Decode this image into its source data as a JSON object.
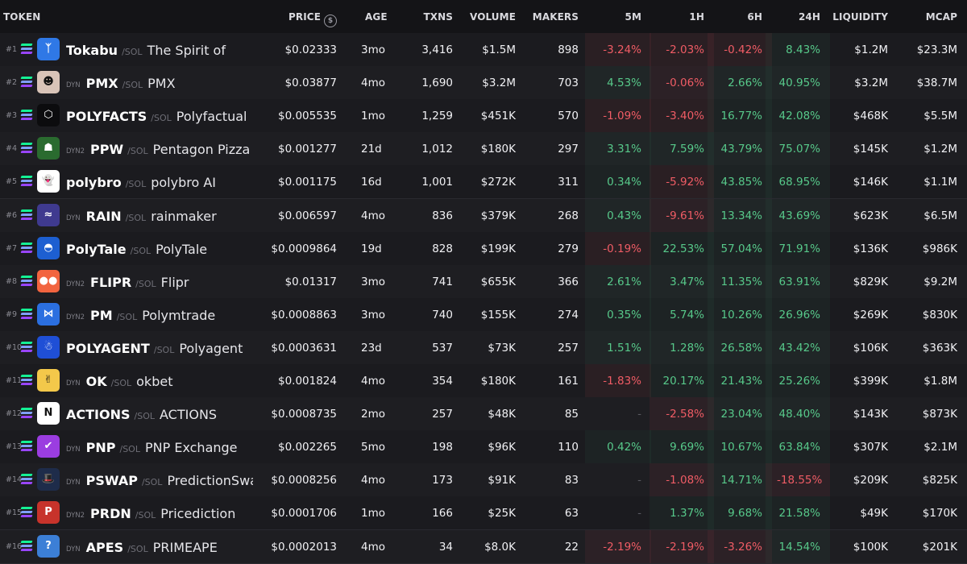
{
  "header": {
    "token": "TOKEN",
    "price": "PRICE",
    "price_icon": "$",
    "age": "AGE",
    "txns": "TXNS",
    "volume": "VOLUME",
    "makers": "MAKERS",
    "m5": "5M",
    "h1": "1H",
    "h6": "6H",
    "h24": "24H",
    "liquidity": "LIQUIDITY",
    "mcap": "MCAP"
  },
  "colors": {
    "positive": "#57c98a",
    "negative": "#f05c65",
    "background": "#1b1b1f",
    "header_bg": "#141417"
  },
  "rows": [
    {
      "rank": "#1",
      "dex": "",
      "symbol": "Tokabu",
      "chain": "SOL",
      "name": "The Spirit of Gambling",
      "price": "$0.02333",
      "age": "3mo",
      "txns": "3,416",
      "volume": "$1.5M",
      "makers": "898",
      "m5": "-3.24%",
      "h1": "-2.03%",
      "h6": "-0.42%",
      "h24": "8.43%",
      "liquidity": "$1.2M",
      "mcap": "$23.3M",
      "logo_icon": "blue-figure-icon",
      "logo_bg": "#2f78e6",
      "logo_glyph": "ᛉ"
    },
    {
      "rank": "#2",
      "dex": "DYN",
      "symbol": "PMX",
      "chain": "SOL",
      "name": "PMX",
      "price": "$0.03877",
      "age": "4mo",
      "txns": "1,690",
      "volume": "$3.2M",
      "makers": "703",
      "m5": "4.53%",
      "h1": "-0.06%",
      "h6": "2.66%",
      "h24": "40.95%",
      "liquidity": "$3.2M",
      "mcap": "$38.7M",
      "logo_icon": "portrait-icon",
      "logo_bg": "#d9c4b8",
      "logo_glyph": "☻"
    },
    {
      "rank": "#3",
      "dex": "",
      "symbol": "POLYFACTS",
      "chain": "SOL",
      "name": "Polyfactual",
      "price": "$0.005535",
      "age": "1mo",
      "txns": "1,259",
      "volume": "$451K",
      "makers": "570",
      "m5": "-1.09%",
      "h1": "-3.40%",
      "h6": "16.77%",
      "h24": "42.08%",
      "liquidity": "$468K",
      "mcap": "$5.5M",
      "logo_icon": "cube-outline-icon",
      "logo_bg": "#0c0c0e",
      "logo_glyph": "⬡"
    },
    {
      "rank": "#4",
      "dex": "DYN2",
      "symbol": "PPW",
      "chain": "SOL",
      "name": "Pentagon Pizza Watch",
      "price": "$0.001277",
      "age": "21d",
      "txns": "1,012",
      "volume": "$180K",
      "makers": "297",
      "m5": "3.31%",
      "h1": "7.59%",
      "h6": "43.79%",
      "h24": "75.07%",
      "liquidity": "$145K",
      "mcap": "$1.2M",
      "logo_icon": "pizza-character-icon",
      "logo_bg": "#2a6b2f",
      "logo_glyph": "☗"
    },
    {
      "rank": "#5",
      "dex": "",
      "symbol": "polybro",
      "chain": "SOL",
      "name": "polybro AI",
      "price": "$0.001175",
      "age": "16d",
      "txns": "1,001",
      "volume": "$272K",
      "makers": "311",
      "m5": "0.34%",
      "h1": "-5.92%",
      "h6": "43.85%",
      "h24": "68.95%",
      "liquidity": "$146K",
      "mcap": "$1.1M",
      "logo_icon": "ghost-icon",
      "logo_bg": "#ffffff",
      "logo_glyph": "👻"
    },
    {
      "rank": "#6",
      "dex": "DYN",
      "symbol": "RAIN",
      "chain": "SOL",
      "name": "rainmaker",
      "price": "$0.006597",
      "age": "4mo",
      "txns": "836",
      "volume": "$379K",
      "makers": "268",
      "m5": "0.43%",
      "h1": "-9.61%",
      "h6": "13.34%",
      "h24": "43.69%",
      "liquidity": "$623K",
      "mcap": "$6.5M",
      "logo_icon": "rain-wave-icon",
      "logo_bg": "#3f3a8f",
      "logo_glyph": "≈"
    },
    {
      "rank": "#7",
      "dex": "",
      "symbol": "PolyTale",
      "chain": "SOL",
      "name": "PolyTale",
      "price": "$0.0009864",
      "age": "19d",
      "txns": "828",
      "volume": "$199K",
      "makers": "279",
      "m5": "-0.19%",
      "h1": "22.53%",
      "h6": "57.04%",
      "h24": "71.91%",
      "liquidity": "$136K",
      "mcap": "$986K",
      "logo_icon": "blue-hood-icon",
      "logo_bg": "#1d5fd1",
      "logo_glyph": "◓"
    },
    {
      "rank": "#8",
      "dex": "DYN2",
      "symbol": "FLIPR",
      "chain": "SOL",
      "name": "Flipr",
      "price": "$0.01317",
      "age": "3mo",
      "txns": "741",
      "volume": "$655K",
      "makers": "366",
      "m5": "2.61%",
      "h1": "3.47%",
      "h6": "11.35%",
      "h24": "63.91%",
      "liquidity": "$829K",
      "mcap": "$9.2M",
      "logo_icon": "dots-icon",
      "logo_bg": "#f2643f",
      "logo_glyph": "●●"
    },
    {
      "rank": "#9",
      "dex": "DYN2",
      "symbol": "PM",
      "chain": "SOL",
      "name": "Polymtrade",
      "price": "$0.0008863",
      "age": "3mo",
      "txns": "740",
      "volume": "$155K",
      "makers": "274",
      "m5": "0.35%",
      "h1": "5.74%",
      "h6": "10.26%",
      "h24": "26.96%",
      "liquidity": "$269K",
      "mcap": "$830K",
      "logo_icon": "bowtie-icon",
      "logo_bg": "#2b6fe0",
      "logo_glyph": "⋈"
    },
    {
      "rank": "#10",
      "dex": "",
      "symbol": "POLYAGENT",
      "chain": "SOL",
      "name": "Polyagent",
      "price": "$0.0003631",
      "age": "23d",
      "txns": "537",
      "volume": "$73K",
      "makers": "257",
      "m5": "1.51%",
      "h1": "1.28%",
      "h6": "26.58%",
      "h24": "43.42%",
      "liquidity": "$106K",
      "mcap": "$363K",
      "logo_icon": "robot-icon",
      "logo_bg": "#1f4fd6",
      "logo_glyph": "☃"
    },
    {
      "rank": "#11",
      "dex": "DYN",
      "symbol": "OK",
      "chain": "SOL",
      "name": "okbet",
      "price": "$0.001824",
      "age": "4mo",
      "txns": "354",
      "volume": "$180K",
      "makers": "161",
      "m5": "-1.83%",
      "h1": "20.17%",
      "h6": "21.43%",
      "h24": "25.26%",
      "liquidity": "$399K",
      "mcap": "$1.8M",
      "logo_icon": "hand-ok-icon",
      "logo_bg": "#f3c84a",
      "logo_glyph": "✌"
    },
    {
      "rank": "#12",
      "dex": "",
      "symbol": "ACTIONS",
      "chain": "SOL",
      "name": "ACTIONS",
      "price": "$0.0008735",
      "age": "2mo",
      "txns": "257",
      "volume": "$48K",
      "makers": "85",
      "m5": "-",
      "h1": "-2.58%",
      "h6": "23.04%",
      "h24": "48.40%",
      "liquidity": "$143K",
      "mcap": "$873K",
      "logo_icon": "n-logo-icon",
      "logo_bg": "#ffffff",
      "logo_glyph": "N"
    },
    {
      "rank": "#13",
      "dex": "DYN",
      "symbol": "PNP",
      "chain": "SOL",
      "name": "PNP Exchange",
      "price": "$0.002265",
      "age": "5mo",
      "txns": "198",
      "volume": "$96K",
      "makers": "110",
      "m5": "0.42%",
      "h1": "9.69%",
      "h6": "10.67%",
      "h24": "63.84%",
      "liquidity": "$307K",
      "mcap": "$2.1M",
      "logo_icon": "check-mark-icon",
      "logo_bg": "#9b3de0",
      "logo_glyph": "✔"
    },
    {
      "rank": "#14",
      "dex": "DYN",
      "symbol": "PSWAP",
      "chain": "SOL",
      "name": "PredictionSwap",
      "price": "$0.0008256",
      "age": "4mo",
      "txns": "173",
      "volume": "$91K",
      "makers": "83",
      "m5": "-",
      "h1": "-1.08%",
      "h6": "14.71%",
      "h24": "-18.55%",
      "liquidity": "$209K",
      "mcap": "$825K",
      "logo_icon": "top-hat-icon",
      "logo_bg": "#1e2c4a",
      "logo_glyph": "🎩"
    },
    {
      "rank": "#15",
      "dex": "DYN2",
      "symbol": "PRDN",
      "chain": "SOL",
      "name": "Pricediction",
      "price": "$0.0001706",
      "age": "1mo",
      "txns": "166",
      "volume": "$25K",
      "makers": "63",
      "m5": "-",
      "h1": "1.37%",
      "h6": "9.68%",
      "h24": "21.58%",
      "liquidity": "$49K",
      "mcap": "$170K",
      "logo_icon": "p-logo-icon",
      "logo_bg": "#c7332b",
      "logo_glyph": "P"
    },
    {
      "rank": "#16",
      "dex": "DYN",
      "symbol": "APES",
      "chain": "SOL",
      "name": "PRIMEAPE",
      "price": "$0.0002013",
      "age": "4mo",
      "txns": "34",
      "volume": "$8.0K",
      "makers": "22",
      "m5": "-2.19%",
      "h1": "-2.19%",
      "h6": "-3.26%",
      "h24": "14.54%",
      "liquidity": "$100K",
      "mcap": "$201K",
      "logo_icon": "question-mark-icon",
      "logo_bg": "#3c7fd6",
      "logo_glyph": "?"
    }
  ]
}
